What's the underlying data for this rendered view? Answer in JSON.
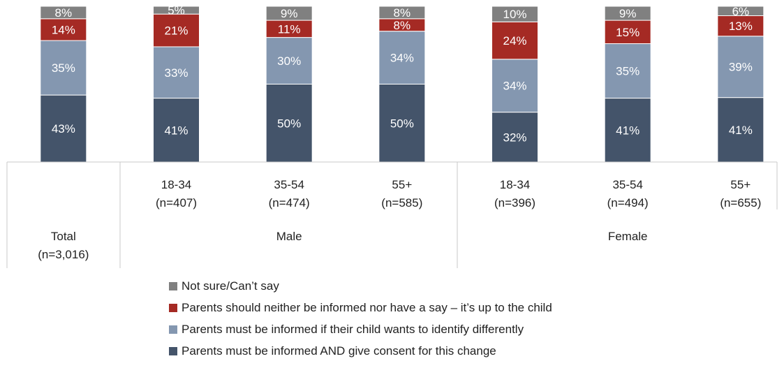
{
  "colors": {
    "consent": "#44546a",
    "informed": "#8497b0",
    "up_to_child": "#a52a24",
    "not_sure": "#808080",
    "axis": "#c8c8c8"
  },
  "chart_data": {
    "type": "bar",
    "stacked": true,
    "categories": [
      "Total (n=3,016)",
      "Male 18-34 (n=407)",
      "Male 35-54 (n=474)",
      "Male 55+ (n=585)",
      "Female 18-34 (n=396)",
      "Female 35-54 (n=494)",
      "Female 55+ (n=655)"
    ],
    "series": [
      {
        "name": "Parents must be informed AND give consent for this change",
        "values": [
          43,
          41,
          50,
          50,
          32,
          41,
          41
        ]
      },
      {
        "name": "Parents must be informed if their child wants to identify differently",
        "values": [
          35,
          33,
          30,
          34,
          34,
          35,
          39
        ]
      },
      {
        "name": "Parents should neither be informed nor have a say – it’s up to the child",
        "values": [
          14,
          21,
          11,
          8,
          24,
          15,
          13
        ]
      },
      {
        "name": "Not sure/Can’t say",
        "values": [
          8,
          5,
          9,
          8,
          10,
          9,
          6
        ]
      }
    ],
    "segment_labels": [
      [
        "43%",
        "41%",
        "50%",
        "50%",
        "32%",
        "41%",
        "41%"
      ],
      [
        "35%",
        "33%",
        "30%",
        "34%",
        "34%",
        "35%",
        "39%"
      ],
      [
        "14%",
        "21%",
        "11%",
        "8%",
        "24%",
        "15%",
        "13%"
      ],
      [
        "8%",
        "5%",
        "9%",
        "8%",
        "10%",
        "9%",
        "6%"
      ]
    ],
    "x_labels": [
      {
        "lines": [
          "Total",
          "(n=3,016)"
        ]
      },
      {
        "lines": [
          "18-34",
          "(n=407)"
        ]
      },
      {
        "lines": [
          "35-54",
          "(n=474)"
        ]
      },
      {
        "lines": [
          "55+",
          "(n=585)"
        ]
      },
      {
        "lines": [
          "18-34",
          "(n=396)"
        ]
      },
      {
        "lines": [
          "35-54",
          "(n=494)"
        ]
      },
      {
        "lines": [
          "55+",
          "(n=655)"
        ]
      }
    ],
    "groups": [
      {
        "label": "Male",
        "span": [
          1,
          3
        ]
      },
      {
        "label": "Female",
        "span": [
          4,
          6
        ]
      }
    ],
    "legend": {
      "placement": "bottom",
      "items": [
        {
          "label": "Not sure/Can’t say",
          "color_key": "not_sure"
        },
        {
          "label": "Parents should neither be informed nor have a say – it’s up to the child",
          "color_key": "up_to_child"
        },
        {
          "label": "Parents must be informed if their child wants to identify differently",
          "color_key": "informed"
        },
        {
          "label": "Parents must be informed AND give consent for this change",
          "color_key": "consent"
        }
      ]
    }
  }
}
